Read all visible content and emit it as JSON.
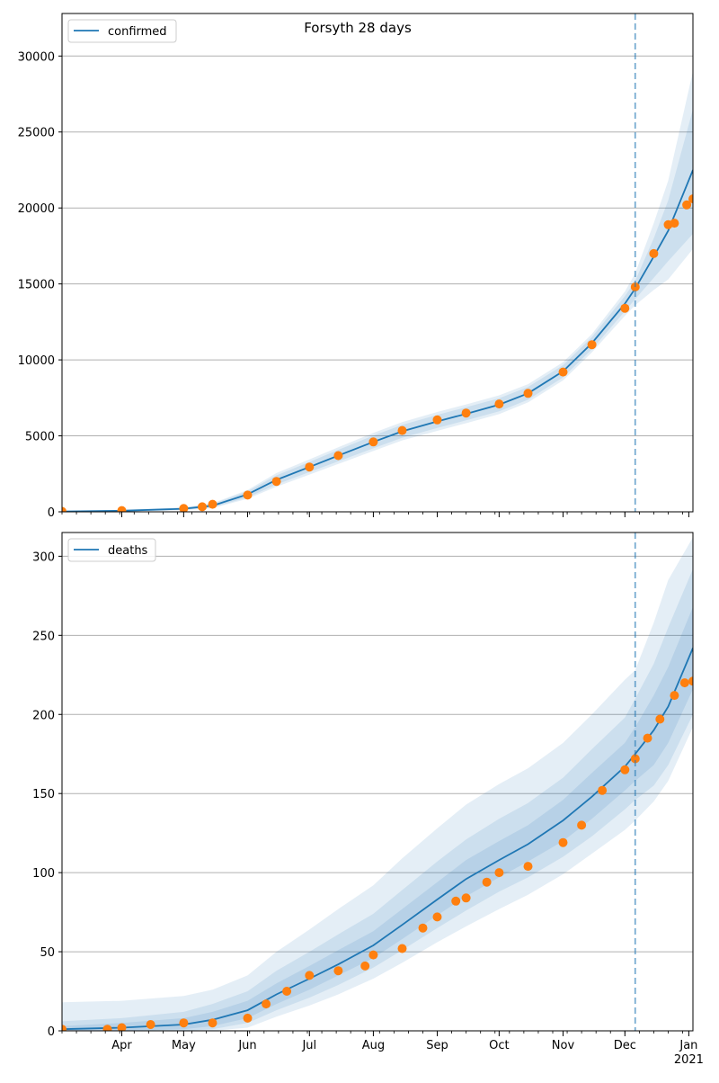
{
  "title": "Forsyth 28 days",
  "colors": {
    "model_line": "#1f77b4",
    "observed": "#ff7f0e",
    "band": "#1f77b4",
    "grid": "#b0b0b0",
    "marker_line": "#1f77b4"
  },
  "chart_data": [
    {
      "type": "line",
      "title": "Forsyth 28 days",
      "legend": [
        "confirmed"
      ],
      "legend_position": "top-left",
      "xlim": [
        "2020-03-03",
        "2021-01-03"
      ],
      "ylim": [
        0,
        32800
      ],
      "yticks": [
        0,
        5000,
        10000,
        15000,
        20000,
        25000,
        30000
      ],
      "grid": "horizontal",
      "forecast_start": "2020-12-06",
      "model": {
        "name": "confirmed",
        "x": [
          "2020-03-03",
          "2020-04-01",
          "2020-05-01",
          "2020-05-15",
          "2020-06-01",
          "2020-06-15",
          "2020-07-01",
          "2020-07-15",
          "2020-08-01",
          "2020-08-15",
          "2020-09-01",
          "2020-09-15",
          "2020-10-01",
          "2020-10-15",
          "2020-11-01",
          "2020-11-15",
          "2020-12-01",
          "2020-12-06",
          "2020-12-15",
          "2020-12-22",
          "2021-01-03"
        ],
        "y": [
          20,
          70,
          200,
          400,
          1150,
          2100,
          2950,
          3700,
          4600,
          5300,
          5950,
          6450,
          7050,
          7800,
          9250,
          11100,
          13700,
          14700,
          16800,
          18500,
          22500
        ],
        "bands": [
          {
            "lower": [
              0,
              35,
              130,
              290,
              950,
              1800,
              2620,
              3320,
              4180,
              4880,
              5520,
              6020,
              6620,
              7380,
              8850,
              10700,
              13200,
              14000,
              15400,
              16500,
              18300
            ],
            "upper": [
              45,
              105,
              270,
              510,
              1350,
              2400,
              3280,
              4080,
              5020,
              5720,
              6380,
              6880,
              7480,
              8220,
              9650,
              11500,
              14200,
              15200,
              18000,
              20500,
              26500
            ]
          },
          {
            "lower": [
              0,
              20,
              100,
              240,
              860,
              1650,
              2450,
              3150,
              4000,
              4700,
              5330,
              5830,
              6430,
              7200,
              8650,
              10500,
              12900,
              13600,
              14600,
              15300,
              17300
            ],
            "upper": [
              60,
              120,
              300,
              560,
              1440,
              2550,
              3450,
              4250,
              5200,
              5900,
              6570,
              7070,
              7670,
              8400,
              9850,
              11700,
              14500,
              15700,
              19000,
              21800,
              29000
            ],
            "opacity": 0.12
          }
        ]
      },
      "observed": {
        "x": [
          "2020-03-03",
          "2020-04-01",
          "2020-05-01",
          "2020-05-10",
          "2020-05-15",
          "2020-06-01",
          "2020-06-15",
          "2020-07-01",
          "2020-07-15",
          "2020-08-01",
          "2020-08-15",
          "2020-09-01",
          "2020-09-15",
          "2020-10-01",
          "2020-10-15",
          "2020-11-01",
          "2020-11-15",
          "2020-12-01",
          "2020-12-06",
          "2020-12-15",
          "2020-12-22",
          "2020-12-25",
          "2020-12-31",
          "2021-01-03"
        ],
        "y": [
          30,
          80,
          220,
          330,
          500,
          1100,
          2000,
          2950,
          3700,
          4600,
          5350,
          6050,
          6500,
          7100,
          7800,
          9200,
          11000,
          13400,
          14800,
          17000,
          18900,
          19000,
          20200,
          20600
        ]
      }
    },
    {
      "type": "line",
      "legend": [
        "deaths"
      ],
      "legend_position": "top-left",
      "xlim": [
        "2020-03-03",
        "2021-01-03"
      ],
      "ylim": [
        0,
        315
      ],
      "yticks": [
        0,
        50,
        100,
        150,
        200,
        250,
        300
      ],
      "xticks": [
        "Apr",
        "May",
        "Jun",
        "Jul",
        "Aug",
        "Sep",
        "Oct",
        "Nov",
        "Dec",
        "Jan"
      ],
      "xtick_dates": [
        "2020-04-01",
        "2020-05-01",
        "2020-06-01",
        "2020-07-01",
        "2020-08-01",
        "2020-09-01",
        "2020-10-01",
        "2020-11-01",
        "2020-12-01",
        "2021-01-01"
      ],
      "year_label": "2021",
      "grid": "horizontal",
      "forecast_start": "2020-12-06",
      "model": {
        "name": "deaths",
        "x": [
          "2020-03-03",
          "2020-04-01",
          "2020-05-01",
          "2020-05-15",
          "2020-06-01",
          "2020-06-15",
          "2020-07-01",
          "2020-07-15",
          "2020-08-01",
          "2020-08-15",
          "2020-09-01",
          "2020-09-15",
          "2020-10-01",
          "2020-10-15",
          "2020-11-01",
          "2020-11-15",
          "2020-12-01",
          "2020-12-06",
          "2020-12-15",
          "2020-12-22",
          "2021-01-03"
        ],
        "y": [
          1,
          2,
          4,
          7,
          13,
          23,
          33,
          42,
          54,
          67,
          83,
          96,
          108,
          118,
          133,
          148,
          167,
          175,
          190,
          205,
          242
        ],
        "bands": [
          {
            "lower": [
              0,
              0,
              1,
              3,
              8,
              17,
              26,
              35,
              46,
              58,
              73,
              85,
              97,
              107,
              120,
              134,
              152,
              158,
              168,
              182,
              216
            ],
            "upper": [
              3,
              5,
              8,
              12,
              19,
              30,
              41,
              51,
              63,
              77,
              94,
              108,
              120,
              130,
              146,
              163,
              182,
              192,
              212,
              230,
              268
            ]
          },
          {
            "lower": [
              0,
              0,
              0,
              1,
              5,
              13,
              21,
              29,
              40,
              51,
              65,
              76,
              88,
              97,
              110,
              123,
              140,
              146,
              155,
              168,
              200
            ],
            "upper": [
              6,
              8,
              12,
              17,
              25,
              38,
              50,
              61,
              74,
              89,
              107,
              121,
              134,
              144,
              160,
              178,
              198,
              210,
              232,
              255,
              292
            ]
          },
          {
            "lower": [
              0,
              0,
              0,
              0,
              2,
              9,
              16,
              23,
              33,
              43,
              56,
              66,
              77,
              86,
              99,
              112,
              127,
              133,
              145,
              158,
              192
            ],
            "upper": [
              18,
              19,
              22,
              26,
              35,
              50,
              64,
              77,
              92,
              109,
              128,
              143,
              156,
              166,
              182,
              200,
              222,
              228,
              258,
              285,
              312
            ]
          }
        ]
      },
      "observed": {
        "x": [
          "2020-03-03",
          "2020-03-25",
          "2020-04-01",
          "2020-04-15",
          "2020-05-01",
          "2020-05-15",
          "2020-06-01",
          "2020-06-10",
          "2020-06-20",
          "2020-07-01",
          "2020-07-15",
          "2020-07-28",
          "2020-08-01",
          "2020-08-15",
          "2020-08-25",
          "2020-09-01",
          "2020-09-10",
          "2020-09-15",
          "2020-09-25",
          "2020-10-01",
          "2020-10-15",
          "2020-11-01",
          "2020-11-10",
          "2020-11-20",
          "2020-12-01",
          "2020-12-06",
          "2020-12-12",
          "2020-12-18",
          "2020-12-25",
          "2020-12-30",
          "2021-01-03"
        ],
        "y": [
          1,
          1,
          2,
          4,
          5,
          5,
          8,
          17,
          25,
          35,
          38,
          41,
          48,
          52,
          65,
          72,
          82,
          84,
          94,
          100,
          104,
          119,
          130,
          152,
          165,
          172,
          185,
          197,
          212,
          220,
          221
        ]
      }
    }
  ]
}
